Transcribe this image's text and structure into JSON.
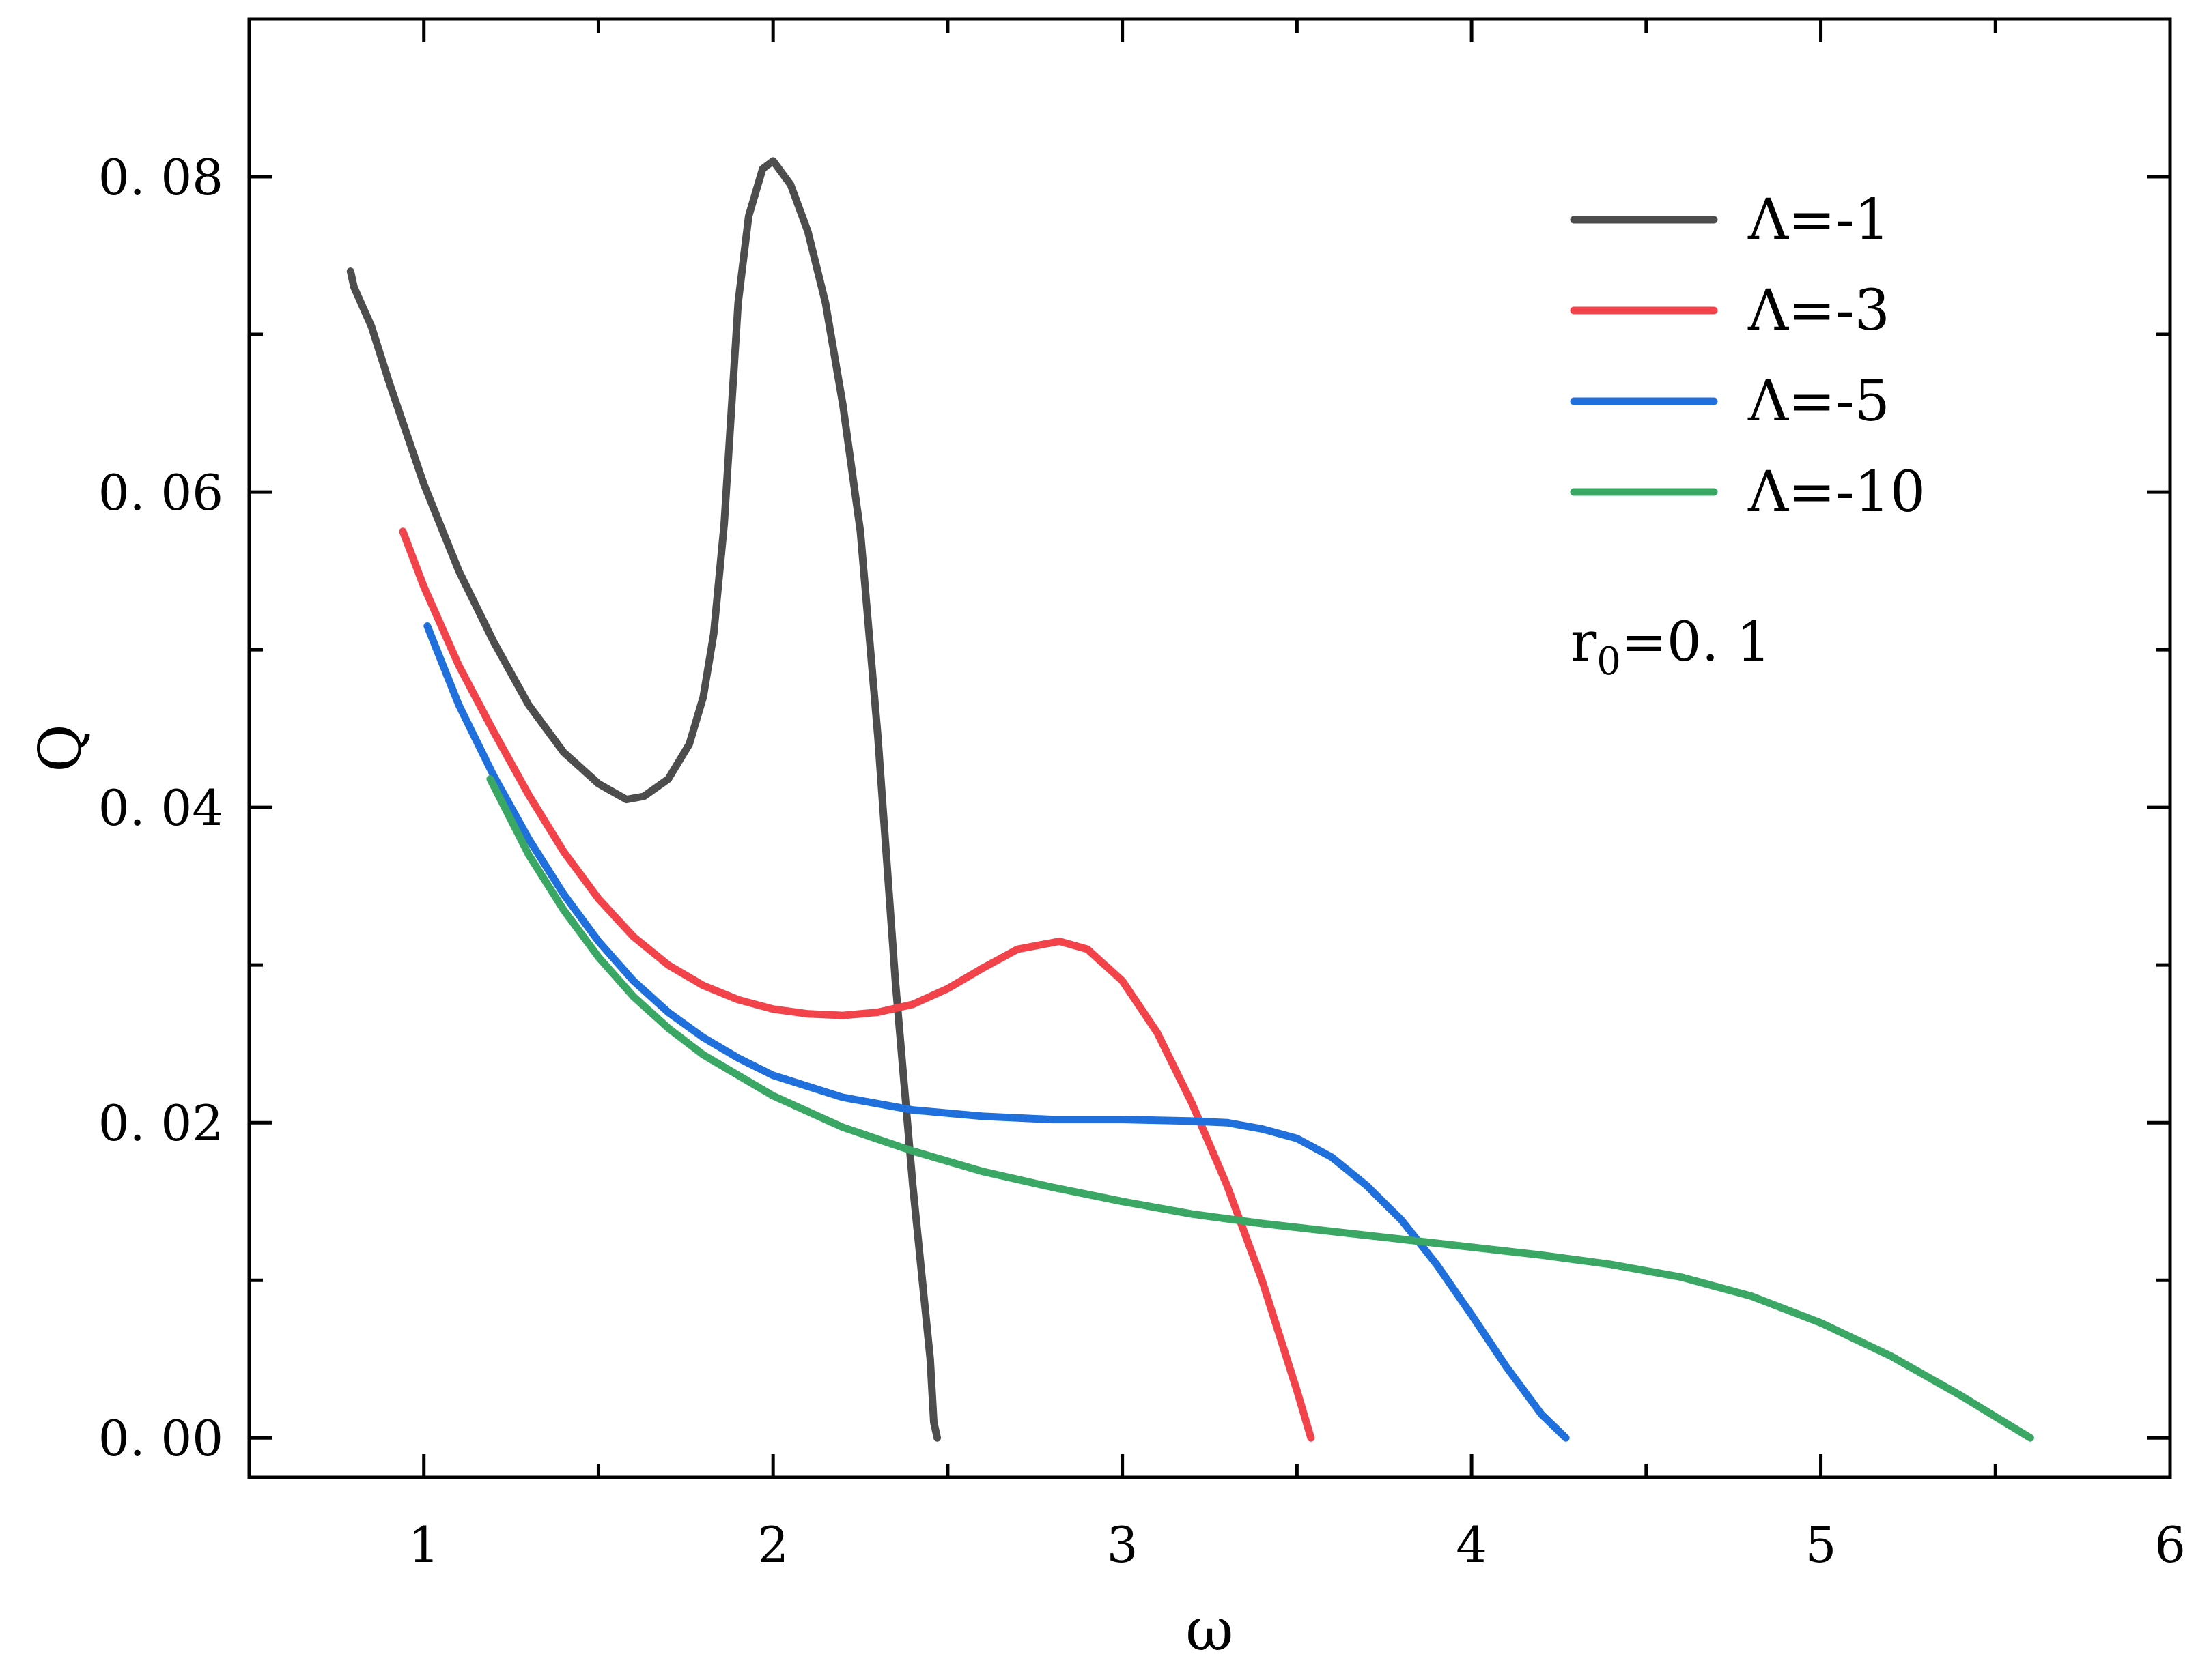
{
  "chart_data": {
    "type": "line",
    "xlabel": "ω",
    "ylabel": "Q",
    "xlim": [
      0.5,
      6
    ],
    "ylim": [
      -0.0025,
      0.09
    ],
    "x_ticks": [
      1,
      2,
      3,
      4,
      5,
      6
    ],
    "x_tick_labels": [
      "1",
      "2",
      "3",
      "4",
      "5",
      "6"
    ],
    "y_ticks": [
      0.0,
      0.02,
      0.04,
      0.06,
      0.08
    ],
    "y_tick_labels": [
      "0. 00",
      "0. 02",
      "0. 04",
      "0. 06",
      "0. 08"
    ],
    "grid": false,
    "legend_position": "top-right",
    "annotation": {
      "base": "r",
      "sub": "0",
      "rest": "=0. 1"
    },
    "series": [
      {
        "name": "Λ=-1",
        "color": "#4d4d4d",
        "points": [
          [
            0.79,
            0.074
          ],
          [
            0.8,
            0.073
          ],
          [
            0.85,
            0.0705
          ],
          [
            0.9,
            0.067
          ],
          [
            1.0,
            0.0605
          ],
          [
            1.1,
            0.055
          ],
          [
            1.2,
            0.0505
          ],
          [
            1.3,
            0.0465
          ],
          [
            1.4,
            0.0435
          ],
          [
            1.5,
            0.0415
          ],
          [
            1.58,
            0.0405
          ],
          [
            1.63,
            0.0407
          ],
          [
            1.7,
            0.0418
          ],
          [
            1.76,
            0.044
          ],
          [
            1.8,
            0.047
          ],
          [
            1.83,
            0.051
          ],
          [
            1.86,
            0.058
          ],
          [
            1.88,
            0.065
          ],
          [
            1.9,
            0.072
          ],
          [
            1.93,
            0.0775
          ],
          [
            1.97,
            0.0805
          ],
          [
            2.0,
            0.081
          ],
          [
            2.05,
            0.0795
          ],
          [
            2.1,
            0.0765
          ],
          [
            2.15,
            0.072
          ],
          [
            2.2,
            0.0655
          ],
          [
            2.25,
            0.0575
          ],
          [
            2.3,
            0.0445
          ],
          [
            2.35,
            0.029
          ],
          [
            2.4,
            0.016
          ],
          [
            2.45,
            0.005
          ],
          [
            2.46,
            0.001
          ],
          [
            2.47,
            0.0
          ]
        ]
      },
      {
        "name": "Λ=-3",
        "color": "#f2434b",
        "points": [
          [
            0.94,
            0.0575
          ],
          [
            1.0,
            0.054
          ],
          [
            1.1,
            0.049
          ],
          [
            1.2,
            0.0448
          ],
          [
            1.3,
            0.0408
          ],
          [
            1.4,
            0.0372
          ],
          [
            1.5,
            0.0342
          ],
          [
            1.6,
            0.0318
          ],
          [
            1.7,
            0.03
          ],
          [
            1.8,
            0.0287
          ],
          [
            1.9,
            0.0278
          ],
          [
            2.0,
            0.0272
          ],
          [
            2.1,
            0.0269
          ],
          [
            2.2,
            0.0268
          ],
          [
            2.3,
            0.027
          ],
          [
            2.4,
            0.0275
          ],
          [
            2.5,
            0.0285
          ],
          [
            2.6,
            0.0298
          ],
          [
            2.7,
            0.031
          ],
          [
            2.82,
            0.0315
          ],
          [
            2.9,
            0.031
          ],
          [
            3.0,
            0.029
          ],
          [
            3.1,
            0.0257
          ],
          [
            3.2,
            0.0212
          ],
          [
            3.3,
            0.016
          ],
          [
            3.4,
            0.01
          ],
          [
            3.5,
            0.003
          ],
          [
            3.54,
            0.0
          ]
        ]
      },
      {
        "name": "Λ=-5",
        "color": "#1f6fdd",
        "points": [
          [
            1.01,
            0.0515
          ],
          [
            1.1,
            0.0465
          ],
          [
            1.2,
            0.042
          ],
          [
            1.3,
            0.038
          ],
          [
            1.4,
            0.0345
          ],
          [
            1.5,
            0.0315
          ],
          [
            1.6,
            0.029
          ],
          [
            1.7,
            0.027
          ],
          [
            1.8,
            0.0254
          ],
          [
            1.9,
            0.0241
          ],
          [
            2.0,
            0.023
          ],
          [
            2.2,
            0.0216
          ],
          [
            2.4,
            0.0208
          ],
          [
            2.6,
            0.0204
          ],
          [
            2.8,
            0.0202
          ],
          [
            3.0,
            0.0202
          ],
          [
            3.2,
            0.0201
          ],
          [
            3.3,
            0.02
          ],
          [
            3.4,
            0.0196
          ],
          [
            3.5,
            0.019
          ],
          [
            3.6,
            0.0178
          ],
          [
            3.7,
            0.016
          ],
          [
            3.8,
            0.0138
          ],
          [
            3.9,
            0.011
          ],
          [
            4.0,
            0.0078
          ],
          [
            4.1,
            0.0045
          ],
          [
            4.2,
            0.0015
          ],
          [
            4.27,
            0.0
          ]
        ]
      },
      {
        "name": "Λ=-10",
        "color": "#3aa764",
        "points": [
          [
            1.19,
            0.0418
          ],
          [
            1.3,
            0.037
          ],
          [
            1.4,
            0.0335
          ],
          [
            1.5,
            0.0305
          ],
          [
            1.6,
            0.028
          ],
          [
            1.7,
            0.026
          ],
          [
            1.8,
            0.0243
          ],
          [
            2.0,
            0.0217
          ],
          [
            2.2,
            0.0197
          ],
          [
            2.4,
            0.0182
          ],
          [
            2.6,
            0.0169
          ],
          [
            2.8,
            0.0159
          ],
          [
            3.0,
            0.015
          ],
          [
            3.2,
            0.0142
          ],
          [
            3.4,
            0.0136
          ],
          [
            3.6,
            0.0131
          ],
          [
            3.8,
            0.0126
          ],
          [
            4.0,
            0.0121
          ],
          [
            4.2,
            0.0116
          ],
          [
            4.4,
            0.011
          ],
          [
            4.6,
            0.0102
          ],
          [
            4.8,
            0.009
          ],
          [
            5.0,
            0.0073
          ],
          [
            5.2,
            0.0052
          ],
          [
            5.4,
            0.0027
          ],
          [
            5.6,
            0.0
          ]
        ]
      }
    ]
  }
}
